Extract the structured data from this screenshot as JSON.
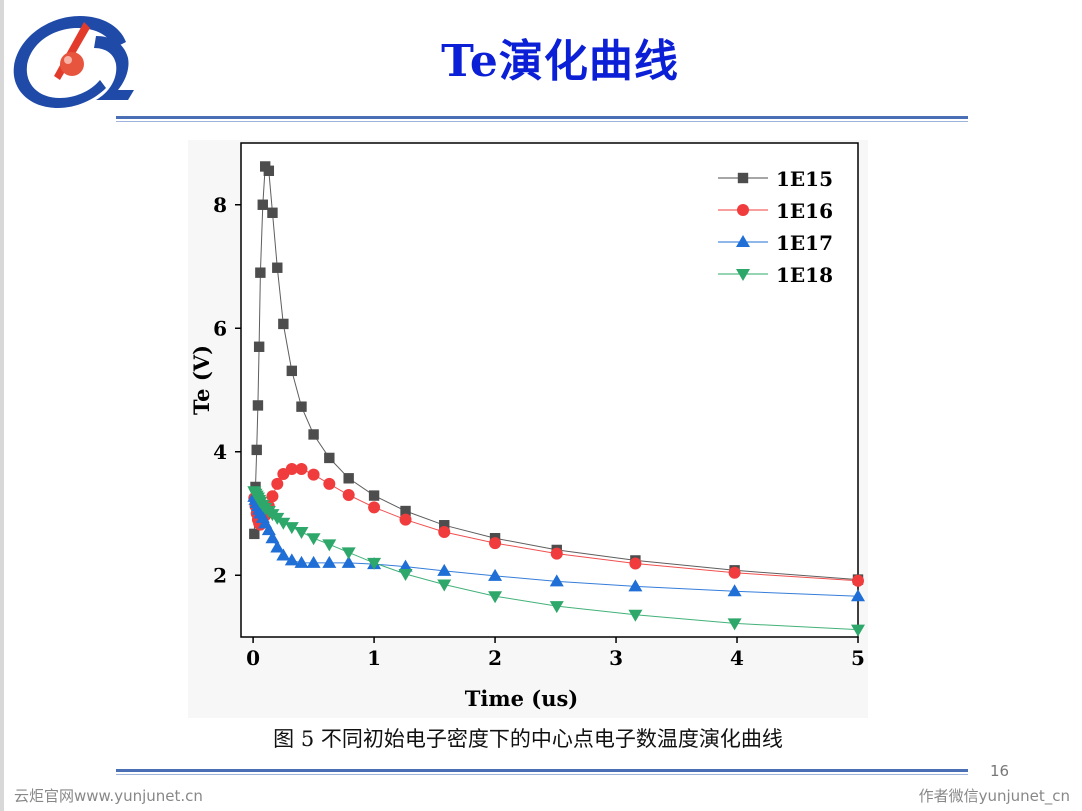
{
  "slide": {
    "title": "Te演化曲线",
    "caption": "图 5 不同初始电子密度下的中心点电子数温度演化曲线",
    "page_number": "16",
    "footer_left": "云炬官网www.yunjunet.cn",
    "footer_right": "作者微信yunjunet_cn"
  },
  "colors": {
    "title": "#0b1fd6",
    "rule": "#4a6fb5",
    "logo_blue": "#1f4aa8",
    "logo_red": "#e33b2b"
  },
  "chart_data": {
    "type": "line",
    "title": "",
    "xlabel": "Time  (us)",
    "ylabel": "Te  (V)",
    "xlim": [
      -0.1,
      5
    ],
    "ylim": [
      1,
      9
    ],
    "xticks": [
      0,
      1,
      2,
      3,
      4,
      5
    ],
    "yticks": [
      2,
      4,
      6,
      8
    ],
    "grid": false,
    "legend_position": "top-right",
    "series": [
      {
        "name": "1E15",
        "color": "#4d4d4d",
        "marker": "square",
        "x": [
          0.01,
          0.02,
          0.03,
          0.04,
          0.05,
          0.06,
          0.08,
          0.1,
          0.13,
          0.16,
          0.2,
          0.25,
          0.32,
          0.4,
          0.5,
          0.63,
          0.79,
          1.0,
          1.26,
          1.58,
          2.0,
          2.51,
          3.16,
          3.98,
          5.0
        ],
        "y": [
          2.67,
          3.43,
          4.03,
          4.75,
          5.7,
          6.9,
          8.0,
          8.62,
          8.55,
          7.87,
          6.98,
          6.07,
          5.31,
          4.73,
          4.28,
          3.9,
          3.57,
          3.29,
          3.04,
          2.81,
          2.6,
          2.41,
          2.24,
          2.08,
          1.93
        ]
      },
      {
        "name": "1E16",
        "color": "#f03c3c",
        "marker": "circle",
        "x": [
          0.01,
          0.02,
          0.03,
          0.04,
          0.05,
          0.06,
          0.08,
          0.1,
          0.13,
          0.16,
          0.2,
          0.25,
          0.32,
          0.4,
          0.5,
          0.63,
          0.79,
          1.0,
          1.26,
          1.58,
          2.0,
          2.51,
          3.16,
          3.98,
          5.0
        ],
        "y": [
          3.25,
          3.12,
          3.0,
          2.9,
          2.84,
          2.82,
          2.85,
          2.97,
          3.12,
          3.28,
          3.48,
          3.64,
          3.72,
          3.72,
          3.63,
          3.48,
          3.3,
          3.1,
          2.9,
          2.7,
          2.52,
          2.35,
          2.19,
          2.04,
          1.91
        ]
      },
      {
        "name": "1E17",
        "color": "#1f6fd6",
        "marker": "triangle-up",
        "x": [
          0.01,
          0.02,
          0.03,
          0.04,
          0.05,
          0.06,
          0.08,
          0.1,
          0.13,
          0.16,
          0.2,
          0.25,
          0.32,
          0.4,
          0.5,
          0.63,
          0.79,
          1.0,
          1.26,
          1.58,
          2.0,
          2.51,
          3.16,
          3.98,
          5.0
        ],
        "y": [
          3.27,
          3.22,
          3.17,
          3.12,
          3.06,
          3.0,
          2.93,
          2.84,
          2.73,
          2.6,
          2.45,
          2.32,
          2.24,
          2.2,
          2.2,
          2.2,
          2.2,
          2.18,
          2.14,
          2.07,
          1.99,
          1.9,
          1.82,
          1.74,
          1.66
        ]
      },
      {
        "name": "1E18",
        "color": "#2ea86a",
        "marker": "triangle-down",
        "x": [
          0.01,
          0.02,
          0.03,
          0.04,
          0.05,
          0.06,
          0.08,
          0.1,
          0.13,
          0.16,
          0.2,
          0.25,
          0.32,
          0.4,
          0.5,
          0.63,
          0.79,
          1.0,
          1.26,
          1.58,
          2.0,
          2.51,
          3.16,
          3.98,
          5.0
        ],
        "y": [
          3.36,
          3.32,
          3.29,
          3.26,
          3.22,
          3.19,
          3.14,
          3.09,
          3.04,
          2.99,
          2.93,
          2.85,
          2.78,
          2.7,
          2.6,
          2.5,
          2.37,
          2.2,
          2.02,
          1.85,
          1.66,
          1.5,
          1.36,
          1.22,
          1.12
        ]
      }
    ]
  }
}
